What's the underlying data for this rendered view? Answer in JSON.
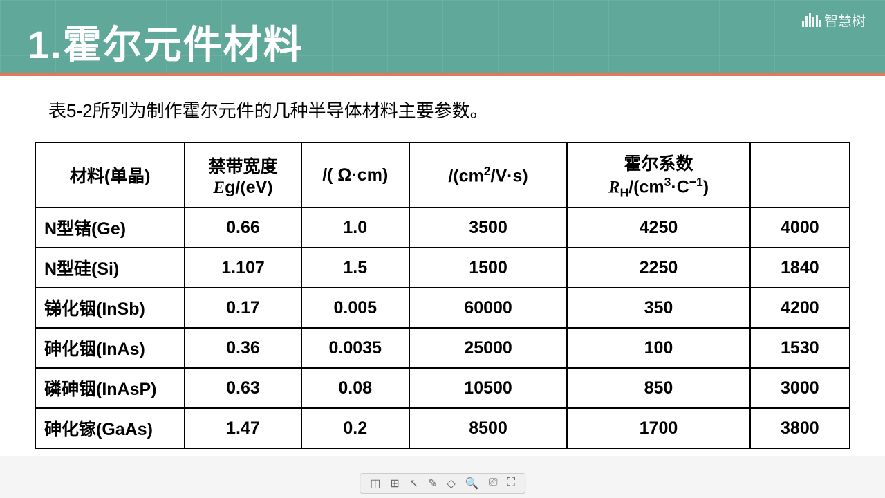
{
  "header": {
    "title": "1.霍尔元件材料",
    "logo_text": "智慧树",
    "bg_color": "#5fa89a",
    "accent_color": "#e8765a"
  },
  "intro": "表5-2所列为制作霍尔元件的几种半导体材料主要参数。",
  "table": {
    "type": "table",
    "border_color": "#000000",
    "background_color": "#ffffff",
    "header_fontsize": 25,
    "cell_fontsize": 25,
    "columns": [
      {
        "key": "material",
        "label_html": "材料(单晶)",
        "width": "18%",
        "align": "left"
      },
      {
        "key": "eg",
        "label_html": "禁带宽度<br><span class='ital'>E</span>g/(eV)",
        "width": "14%",
        "align": "center"
      },
      {
        "key": "rho",
        "label_html": "/( Ω·cm)",
        "width": "13%",
        "align": "center"
      },
      {
        "key": "mu",
        "label_html": "/(cm<span class='sup'>2</span>/V·s)",
        "width": "19%",
        "align": "center"
      },
      {
        "key": "rh",
        "label_html": "霍尔系数<br><span class='ital'>R</span><span class='sub'>H</span>/(cm<span class='sup'>3</span>·C<span class='sup'>−1</span>)",
        "width": "22%",
        "align": "center"
      },
      {
        "key": "extra",
        "label_html": "",
        "width": "12%",
        "align": "center"
      }
    ],
    "rows": [
      {
        "material": "N型锗(Ge)",
        "eg": "0.66",
        "rho": "1.0",
        "mu": "3500",
        "rh": "4250",
        "extra": "4000"
      },
      {
        "material": "N型硅(Si)",
        "eg": "1.107",
        "rho": "1.5",
        "mu": "1500",
        "rh": "2250",
        "extra": "1840"
      },
      {
        "material": "锑化铟(InSb)",
        "eg": "0.17",
        "rho": "0.005",
        "mu": "60000",
        "rh": "350",
        "extra": "4200"
      },
      {
        "material": "砷化铟(InAs)",
        "eg": "0.36",
        "rho": "0.0035",
        "mu": "25000",
        "rh": "100",
        "extra": "1530"
      },
      {
        "material": "磷砷铟(InAsP)",
        "eg": "0.63",
        "rho": "0.08",
        "mu": "10500",
        "rh": "850",
        "extra": "3000"
      },
      {
        "material": "砷化镓(GaAs)",
        "eg": "1.47",
        "rho": "0.2",
        "mu": "8500",
        "rh": "1700",
        "extra": "3800"
      }
    ]
  },
  "toolbar": {
    "icons": [
      "◫",
      "⊞",
      "↖",
      "✎",
      "◇",
      "🔍",
      "⎚",
      "⛶"
    ]
  }
}
